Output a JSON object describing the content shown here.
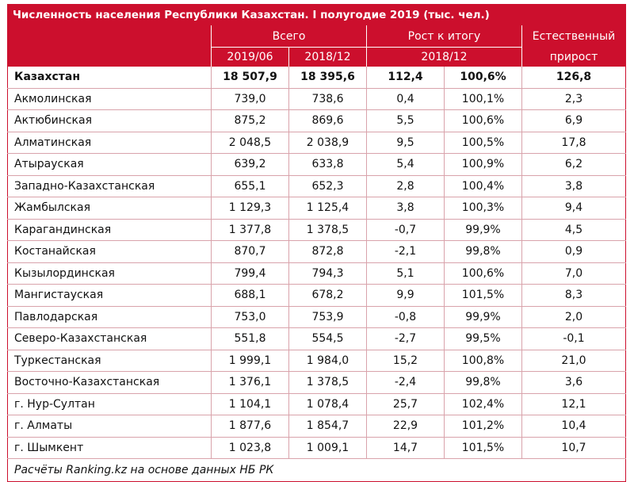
{
  "title": "Численность населения Республики Казахстан. I полугодие 2019 (тыс. чел.)",
  "headers": {
    "total": "Всего",
    "total_col1": "2019/06",
    "total_col2": "2018/12",
    "growth": "Рост к итогу",
    "growth_sub": "2018/12",
    "natural_1": "Естественный",
    "natural_2": "прирост"
  },
  "total_row": {
    "region": "Казахстан",
    "v2019": "18 507,9",
    "v2018": "18 395,6",
    "growth_abs": "112,4",
    "growth_pct": "100,6%",
    "natural": "126,8"
  },
  "rows": [
    {
      "region": "Акмолинская",
      "v2019": "739,0",
      "v2018": "738,6",
      "growth_abs": "0,4",
      "growth_pct": "100,1%",
      "natural": "2,3"
    },
    {
      "region": "Актюбинская",
      "v2019": "875,2",
      "v2018": "869,6",
      "growth_abs": "5,5",
      "growth_pct": "100,6%",
      "natural": "6,9"
    },
    {
      "region": "Алматинская",
      "v2019": "2 048,5",
      "v2018": "2 038,9",
      "growth_abs": "9,5",
      "growth_pct": "100,5%",
      "natural": "17,8"
    },
    {
      "region": "Атырауская",
      "v2019": "639,2",
      "v2018": "633,8",
      "growth_abs": "5,4",
      "growth_pct": "100,9%",
      "natural": "6,2"
    },
    {
      "region": "Западно-Казахстанская",
      "v2019": "655,1",
      "v2018": "652,3",
      "growth_abs": "2,8",
      "growth_pct": "100,4%",
      "natural": "3,8"
    },
    {
      "region": "Жамбылская",
      "v2019": "1 129,3",
      "v2018": "1 125,4",
      "growth_abs": "3,8",
      "growth_pct": "100,3%",
      "natural": "9,4"
    },
    {
      "region": "Карагандинская",
      "v2019": "1 377,8",
      "v2018": "1 378,5",
      "growth_abs": "-0,7",
      "growth_pct": "99,9%",
      "natural": "4,5"
    },
    {
      "region": "Костанайская",
      "v2019": "870,7",
      "v2018": "872,8",
      "growth_abs": "-2,1",
      "growth_pct": "99,8%",
      "natural": "0,9"
    },
    {
      "region": "Кызылординская",
      "v2019": "799,4",
      "v2018": "794,3",
      "growth_abs": "5,1",
      "growth_pct": "100,6%",
      "natural": "7,0"
    },
    {
      "region": "Мангистауская",
      "v2019": "688,1",
      "v2018": "678,2",
      "growth_abs": "9,9",
      "growth_pct": "101,5%",
      "natural": "8,3"
    },
    {
      "region": "Павлодарская",
      "v2019": "753,0",
      "v2018": "753,9",
      "growth_abs": "-0,8",
      "growth_pct": "99,9%",
      "natural": "2,0"
    },
    {
      "region": "Северо-Казахстанская",
      "v2019": "551,8",
      "v2018": "554,5",
      "growth_abs": "-2,7",
      "growth_pct": "99,5%",
      "natural": "-0,1"
    },
    {
      "region": "Туркестанская",
      "v2019": "1 999,1",
      "v2018": "1 984,0",
      "growth_abs": "15,2",
      "growth_pct": "100,8%",
      "natural": "21,0"
    },
    {
      "region": "Восточно-Казахстанская",
      "v2019": "1 376,1",
      "v2018": "1 378,5",
      "growth_abs": "-2,4",
      "growth_pct": "99,8%",
      "natural": "3,6"
    },
    {
      "region": "г. Нур-Султан",
      "v2019": "1 104,1",
      "v2018": "1 078,4",
      "growth_abs": "25,7",
      "growth_pct": "102,4%",
      "natural": "12,1"
    },
    {
      "region": "г. Алматы",
      "v2019": "1 877,6",
      "v2018": "1 854,7",
      "growth_abs": "22,9",
      "growth_pct": "101,2%",
      "natural": "10,4"
    },
    {
      "region": "г. Шымкент",
      "v2019": "1 023,8",
      "v2018": "1 009,1",
      "growth_abs": "14,7",
      "growth_pct": "101,5%",
      "natural": "10,7"
    }
  ],
  "footer": "Расчёты Ranking.kz на основе данных НБ РК",
  "colors": {
    "accent": "#cc0f2d",
    "grid": "#d9a3ab"
  }
}
